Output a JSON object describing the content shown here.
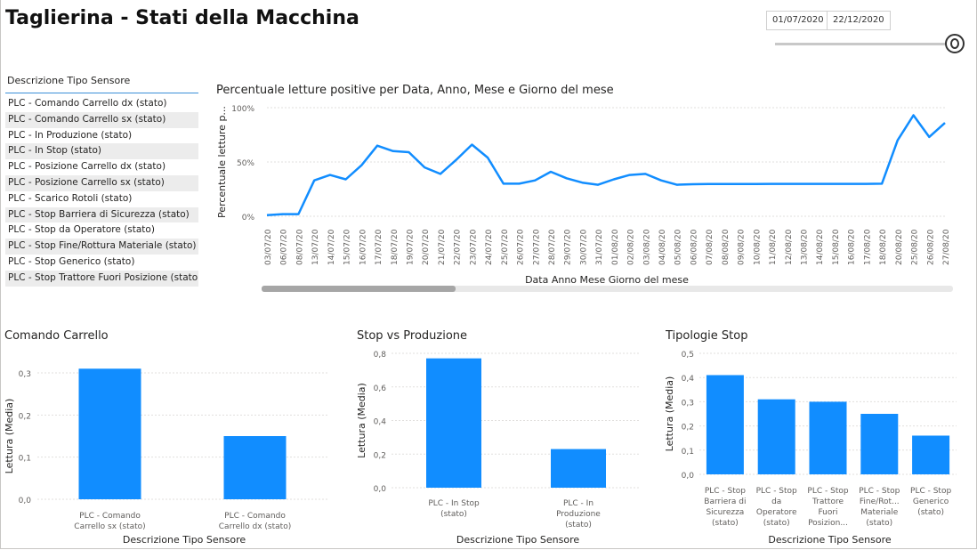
{
  "title": "Taglierina - Stati della Macchina",
  "date_range": {
    "start": "01/07/2020",
    "end": "22/12/2020"
  },
  "slicer": {
    "header": "Descrizione Tipo Sensore",
    "items": [
      "PLC - Comando Carrello dx (stato)",
      "PLC - Comando Carrello sx (stato)",
      "PLC - In Produzione (stato)",
      "PLC - In Stop (stato)",
      "PLC - Posizione Carrello dx (stato)",
      "PLC - Posizione Carrello sx (stato)",
      "PLC - Scarico Rotoli (stato)",
      "PLC - Stop Barriera di Sicurezza (stato)",
      "PLC - Stop da Operatore (stato)",
      "PLC - Stop Fine/Rottura Materiale (stato)",
      "PLC - Stop Generico (stato)",
      "PLC - Stop Trattore Fuori Posizione (stato)"
    ]
  },
  "colors": {
    "accent": "#118dff",
    "axis_text": "#605e5c",
    "grid": "#e1dfdd"
  },
  "chart_data": [
    {
      "id": "line",
      "type": "line",
      "title": "Percentuale letture positive per Data, Anno, Mese e Giorno del mese",
      "xlabel": "Data Anno Mese Giorno del mese",
      "ylabel": "Percentuale letture p...",
      "yticks": [
        "0%",
        "50%",
        "100%"
      ],
      "ylim": [
        0,
        100
      ],
      "categories": [
        "03/07/20",
        "06/07/20",
        "08/07/20",
        "13/07/20",
        "14/07/20",
        "15/07/20",
        "16/07/20",
        "17/07/20",
        "18/07/20",
        "19/07/20",
        "20/07/20",
        "21/07/20",
        "22/07/20",
        "23/07/20",
        "24/07/20",
        "25/07/20",
        "26/07/20",
        "27/07/20",
        "28/07/20",
        "29/07/20",
        "30/07/20",
        "31/07/20",
        "01/08/20",
        "02/08/20",
        "03/08/20",
        "04/08/20",
        "05/08/20",
        "06/08/20",
        "07/08/20",
        "08/08/20",
        "09/08/20",
        "10/08/20",
        "11/08/20",
        "12/08/20",
        "13/08/20",
        "14/08/20",
        "15/08/20",
        "16/08/20",
        "17/08/20",
        "18/08/20",
        "20/08/20",
        "25/08/20",
        "26/08/20",
        "27/08/20"
      ],
      "values": [
        1,
        2,
        2,
        33,
        38,
        34,
        47,
        65,
        60,
        59,
        45,
        39,
        52,
        66,
        54,
        30,
        30,
        33,
        41,
        35,
        31,
        29,
        34,
        38,
        39,
        33,
        29,
        29.5,
        29.7,
        29.7,
        29.7,
        29.7,
        29.8,
        29.8,
        29.8,
        29.8,
        29.8,
        29.8,
        29.8,
        30,
        70,
        93,
        73,
        86
      ]
    },
    {
      "id": "comando",
      "type": "bar",
      "title": "Comando Carrello",
      "xlabel": "Descrizione Tipo Sensore",
      "ylabel": "Lettura (Media)",
      "yticks": [
        "0,0",
        "0,1",
        "0,2",
        "0,3"
      ],
      "ylim": [
        0,
        0.3
      ],
      "categories": [
        [
          "PLC - Comando",
          "Carrello sx (stato)"
        ],
        [
          "PLC - Comando",
          "Carrello dx (stato)"
        ]
      ],
      "values": [
        0.31,
        0.15
      ]
    },
    {
      "id": "stop_prod",
      "type": "bar",
      "title": "Stop vs Produzione",
      "xlabel": "Descrizione Tipo Sensore",
      "ylabel": "Lettura (Media)",
      "yticks": [
        "0,0",
        "0,2",
        "0,4",
        "0,6",
        "0,8"
      ],
      "ylim": [
        0,
        0.8
      ],
      "categories": [
        [
          "PLC - In Stop",
          "(stato)"
        ],
        [
          "PLC - In",
          "Produzione",
          "(stato)"
        ]
      ],
      "values": [
        0.77,
        0.23
      ]
    },
    {
      "id": "tipologie",
      "type": "bar",
      "title": "Tipologie Stop",
      "xlabel": "Descrizione Tipo Sensore",
      "ylabel": "Lettura (Media)",
      "yticks": [
        "0,0",
        "0,1",
        "0,2",
        "0,3",
        "0,4",
        "0,5"
      ],
      "ylim": [
        0,
        0.5
      ],
      "categories": [
        [
          "PLC - Stop",
          "Barriera di",
          "Sicurezza",
          "(stato)"
        ],
        [
          "PLC - Stop",
          "da",
          "Operatore",
          "(stato)"
        ],
        [
          "PLC - Stop",
          "Trattore",
          "Fuori",
          "Posizion..."
        ],
        [
          "PLC - Stop",
          "Fine/Rot...",
          "Materiale",
          "(stato)"
        ],
        [
          "PLC - Stop",
          "Generico",
          "(stato)"
        ]
      ],
      "values": [
        0.41,
        0.31,
        0.3,
        0.25,
        0.16
      ]
    }
  ]
}
